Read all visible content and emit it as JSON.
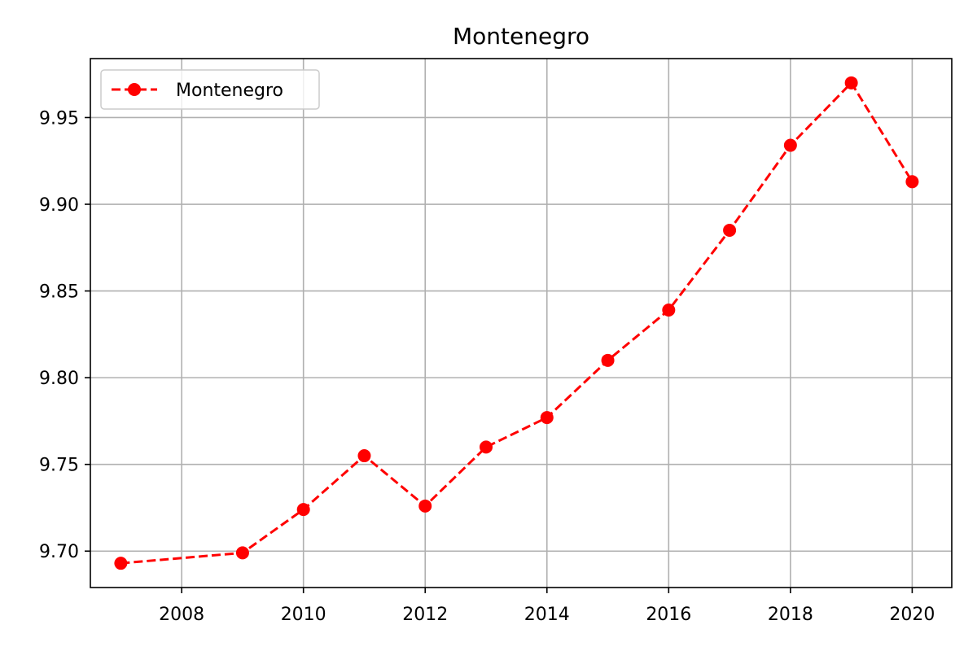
{
  "chart_data": {
    "type": "line",
    "title": "Montenegro",
    "xlabel": "",
    "ylabel": "",
    "xlim": [
      2006.5,
      2020.65
    ],
    "ylim": [
      9.679,
      9.984
    ],
    "x_ticks": [
      2008,
      2010,
      2012,
      2014,
      2016,
      2018,
      2020
    ],
    "x_tick_labels": [
      "2008",
      "2010",
      "2012",
      "2014",
      "2016",
      "2018",
      "2020"
    ],
    "y_ticks": [
      9.7,
      9.75,
      9.8,
      9.85,
      9.9,
      9.95
    ],
    "y_tick_labels": [
      "9.70",
      "9.75",
      "9.80",
      "9.85",
      "9.90",
      "9.95"
    ],
    "grid": true,
    "legend_position": "top-left",
    "series": [
      {
        "name": "Montenegro",
        "color": "#ff0000",
        "line_style": "dashed",
        "marker": "circle",
        "x": [
          2007,
          2009,
          2010,
          2011,
          2012,
          2013,
          2014,
          2015,
          2016,
          2017,
          2018,
          2019,
          2020
        ],
        "values": [
          9.693,
          9.699,
          9.724,
          9.755,
          9.726,
          9.76,
          9.777,
          9.81,
          9.839,
          9.885,
          9.934,
          9.97,
          9.913
        ]
      }
    ]
  }
}
